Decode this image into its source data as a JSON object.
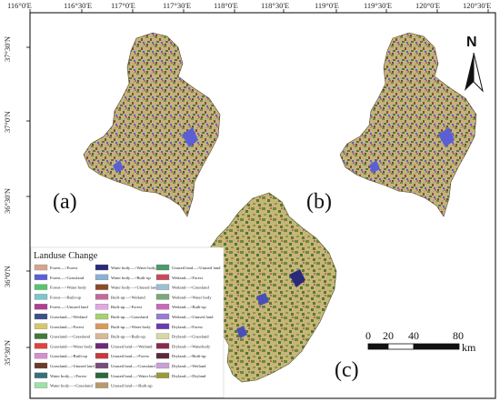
{
  "axes": {
    "top_ticks": [
      "116°0'E",
      "116°30'E",
      "117°0'E",
      "117°30'E",
      "118°0'E",
      "118°30'E",
      "119°0'E",
      "119°30'E",
      "120°0'E",
      "120°30'E"
    ],
    "left_ticks": [
      "37°30'N",
      "37°0'N",
      "36°30'N",
      "36°0'N",
      "35°30'N"
    ]
  },
  "panels": {
    "a": "(a)",
    "b": "(b)",
    "c": "(c)"
  },
  "north_arrow": {
    "label": "N"
  },
  "scale_bar": {
    "labels": [
      "0",
      "20",
      "40",
      "80"
    ],
    "unit": "km"
  },
  "colors": {
    "frame": "#000000",
    "map_base": "#c9b98a",
    "forest": "#6e8f3a",
    "cropland": "#d6c28a",
    "builtup": "#b07060",
    "water": "#4a4fb8",
    "wetland": "#6a5acd",
    "grassland": "#a8c060"
  },
  "legend": {
    "title": "Landuse Change",
    "items": [
      {
        "label": "Forest—>Forest",
        "color": "#d9a48c"
      },
      {
        "label": "Forest—>Grassland",
        "color": "#5b5fd6"
      },
      {
        "label": "Forest—>Water body",
        "color": "#58c36e"
      },
      {
        "label": "Forest—>Built-up",
        "color": "#7ac6c8"
      },
      {
        "label": "Forest—>Unused land",
        "color": "#b03f93"
      },
      {
        "label": "Grassland—>Wetland",
        "color": "#3f4f8a"
      },
      {
        "label": "Grassland—>Forest",
        "color": "#d6c86a"
      },
      {
        "label": "Grassland—>Grassland",
        "color": "#3f7a3a"
      },
      {
        "label": "Grassland—>Water body",
        "color": "#e0423c"
      },
      {
        "label": "Grassland—>Built-up",
        "color": "#d58fd0"
      },
      {
        "label": "Grassland—>Unused land",
        "color": "#6b3a2a"
      },
      {
        "label": "Water body—>Forest",
        "color": "#3a6f7a"
      },
      {
        "label": "Water body—>Grassland",
        "color": "#9ee0a8"
      },
      {
        "label": "Water body—>Water body",
        "color": "#2a2a7a"
      },
      {
        "label": "Water body—>Built-up",
        "color": "#8ab0d8"
      },
      {
        "label": "Water body—>Unused land",
        "color": "#8a4a2a"
      },
      {
        "label": "Built-up—>Wetland",
        "color": "#c46a9a"
      },
      {
        "label": "Built-up—>Forest",
        "color": "#e2a8e0"
      },
      {
        "label": "Built-up—>Grassland",
        "color": "#a8d070"
      },
      {
        "label": "Built-up—>Water body",
        "color": "#d89a5a"
      },
      {
        "label": "Built-up—>Built-up",
        "color": "#d8b898"
      },
      {
        "label": "Unused land—>Wetland",
        "color": "#6a2a7a"
      },
      {
        "label": "Unused land—>Forest",
        "color": "#c83a3a"
      },
      {
        "label": "Unused land—>Grassland",
        "color": "#7a4a7a"
      },
      {
        "label": "Unused land—>Water body",
        "color": "#2a6a3a"
      },
      {
        "label": "Unused land—>Built-up",
        "color": "#b89a6a"
      },
      {
        "label": "Unused land—>Unused land",
        "color": "#4a9a6a"
      },
      {
        "label": "Wetland—>Forest",
        "color": "#c84a5a"
      },
      {
        "label": "Wetland—>Grassland",
        "color": "#9ac0d0"
      },
      {
        "label": "Wetland—>Water body",
        "color": "#7aa87a"
      },
      {
        "label": "Wetland—>Built-up",
        "color": "#c86ab8"
      },
      {
        "label": "Wetland—>Unused land",
        "color": "#9a7ad8"
      },
      {
        "label": "Dryland—>Forest",
        "color": "#6a3ab0"
      },
      {
        "label": "Dryland—>Grassland",
        "color": "#d8d8a0"
      },
      {
        "label": "Dryland—>Waterbody",
        "color": "#8a2a4a"
      },
      {
        "label": "Dryland—>Built-up",
        "color": "#5a2a3a"
      },
      {
        "label": "Dryland—>Wetland",
        "color": "#c8a0d8"
      },
      {
        "label": "Dryland—>Dryland",
        "color": "#9a9a3a"
      }
    ]
  }
}
